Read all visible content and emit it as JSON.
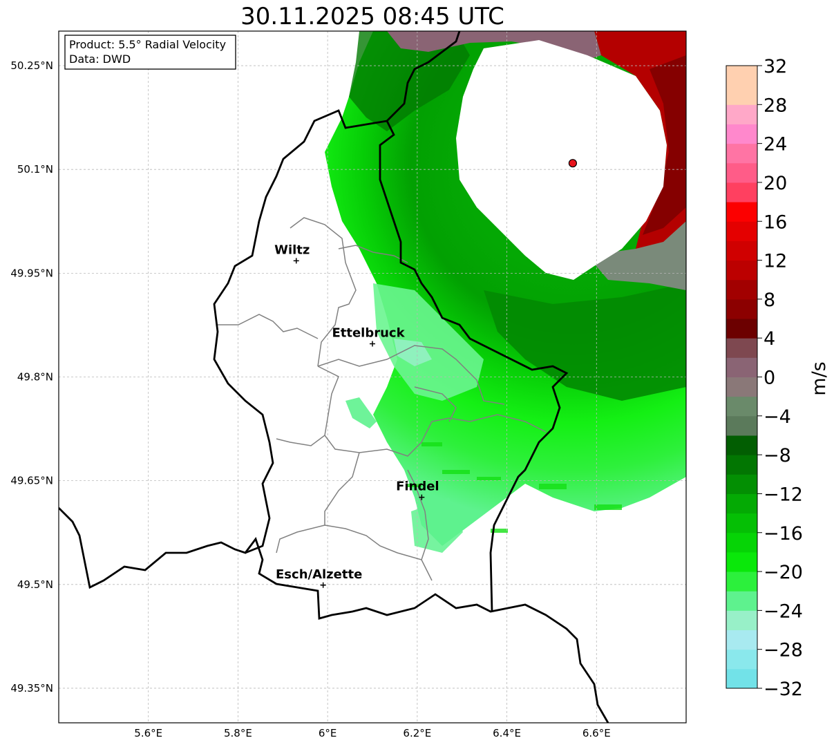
{
  "title": "30.11.2025 08:45 UTC",
  "info_box": {
    "product": "Product: 5.5° Radial Velocity",
    "data": "Data: DWD"
  },
  "axes": {
    "lon_ticks": [
      "5.6°E",
      "5.8°E",
      "6°E",
      "6.2°E",
      "6.4°E",
      "6.6°E"
    ],
    "lat_ticks": [
      "50.25°N",
      "50.1°N",
      "49.95°N",
      "49.8°N",
      "49.65°N",
      "49.5°N",
      "49.35°N"
    ],
    "lon_range": [
      5.4,
      6.8
    ],
    "lat_range": [
      49.3,
      50.3
    ]
  },
  "cities": [
    {
      "name": "Wiltz",
      "lon": 5.93,
      "lat": 49.968
    },
    {
      "name": "Ettelbruck",
      "lon": 6.1,
      "lat": 49.848
    },
    {
      "name": "Findel",
      "lon": 6.21,
      "lat": 49.626
    },
    {
      "name": "Esch/Alzette",
      "lon": 5.99,
      "lat": 49.499
    }
  ],
  "radar_site": {
    "lon": 6.547,
    "lat": 50.109,
    "color": "#e8141c"
  },
  "colorbar": {
    "label": "m/s",
    "min": -32,
    "max": 32,
    "tick_labels": [
      "32",
      "28",
      "24",
      "20",
      "16",
      "12",
      "8",
      "4",
      "0",
      "−4",
      "−8",
      "−12",
      "−16",
      "−20",
      "−24",
      "−28",
      "−32"
    ],
    "colors_bottom_to_top": [
      "#72e2e8",
      "#8ae8ec",
      "#a8eaf0",
      "#98f0c8",
      "#5ef28e",
      "#2cf03c",
      "#0ae80a",
      "#06d406",
      "#05bf05",
      "#04aa04",
      "#038f03",
      "#027602",
      "#025e02",
      "#5b7a5b",
      "#6a8a6a",
      "#8a7878",
      "#8a6474",
      "#7e4850",
      "#6c0000",
      "#8c0000",
      "#a20000",
      "#bc0000",
      "#d00000",
      "#e40000",
      "#fc0000",
      "#ff4060",
      "#ff5c88",
      "#ff74a4",
      "#ff88cc",
      "#ffa8c8",
      "#ffd0b0",
      "#ffd0b0"
    ]
  }
}
